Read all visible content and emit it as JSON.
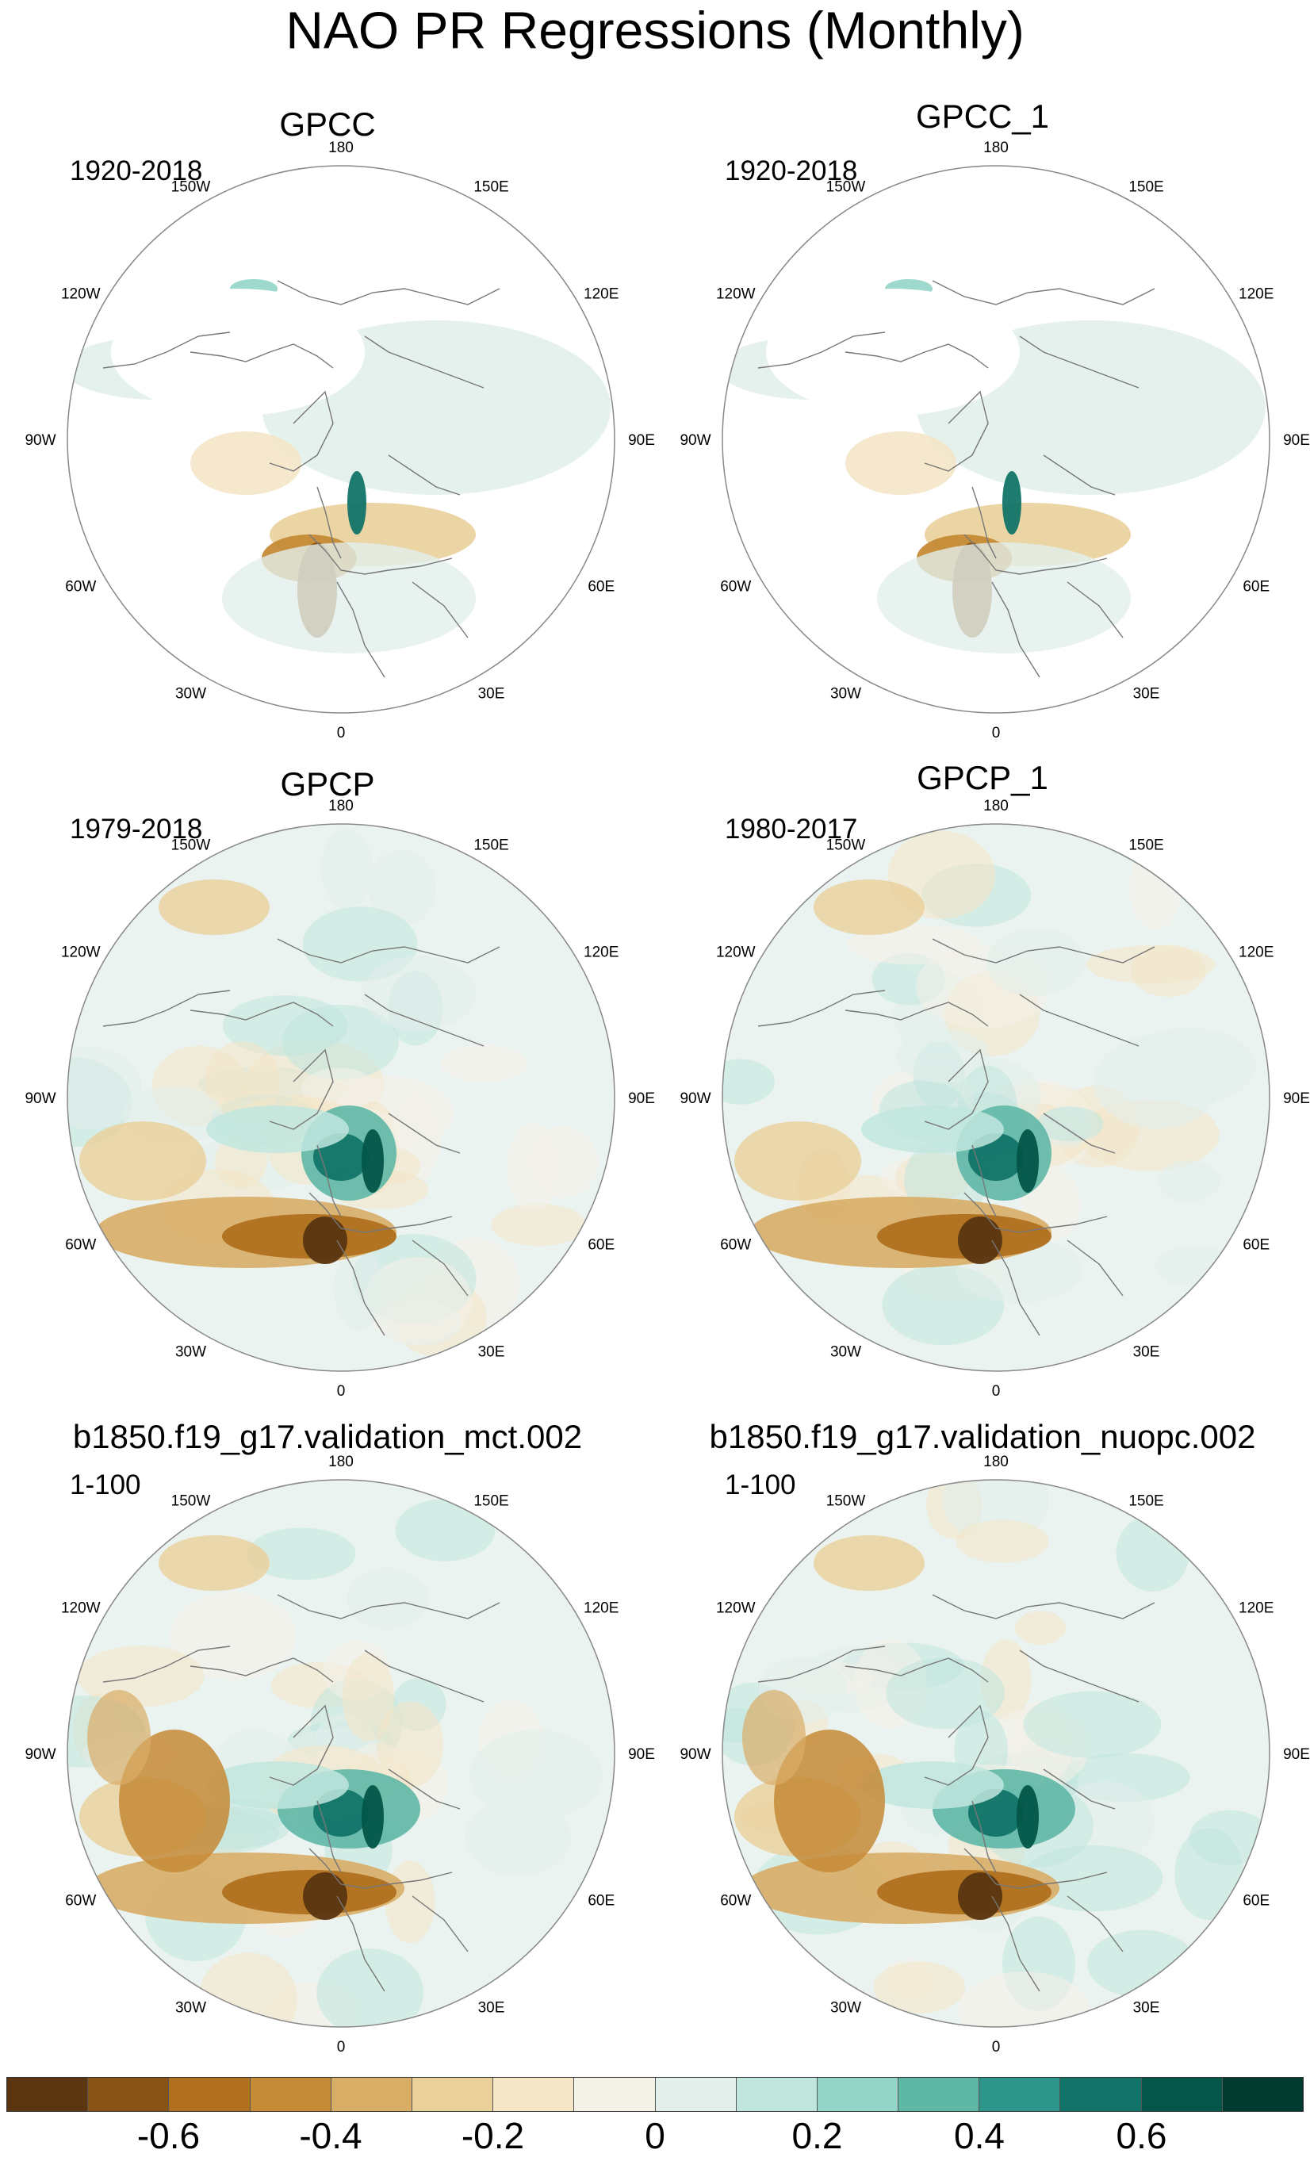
{
  "title": "NAO PR Regressions (Monthly)",
  "longitude_labels": [
    "180",
    "150E",
    "120E",
    "90E",
    "60E",
    "30E",
    "0",
    "30W",
    "60W",
    "90W",
    "120W",
    "150W"
  ],
  "panels": [
    {
      "title": "GPCC",
      "period": "1920-2018"
    },
    {
      "title": "GPCC_1",
      "period": "1920-2018"
    },
    {
      "title": "GPCP",
      "period": "1979-2018"
    },
    {
      "title": "GPCP_1",
      "period": "1980-2017"
    },
    {
      "title": "b1850.f19_g17.validation_mct.002",
      "period": "1-100"
    },
    {
      "title": "b1850.f19_g17.validation_nuopc.002",
      "period": "1-100"
    }
  ],
  "colorbar": {
    "colors": [
      "#5a3510",
      "#8a5316",
      "#b0701f",
      "#c58a36",
      "#d8ad66",
      "#ead09a",
      "#f4e6c6",
      "#f4f1e7",
      "#e2efeb",
      "#c1e6de",
      "#94d5c8",
      "#5fb7a6",
      "#2e958a",
      "#127468",
      "#035648",
      "#013a2f"
    ],
    "tick_labels": [
      "-0.6",
      "-0.4",
      "-0.2",
      "0",
      "0.2",
      "0.4",
      "0.6"
    ],
    "tick_values": [
      -0.6,
      -0.4,
      -0.2,
      0,
      0.2,
      0.4,
      0.6
    ],
    "min": -0.8,
    "max": 0.8
  }
}
